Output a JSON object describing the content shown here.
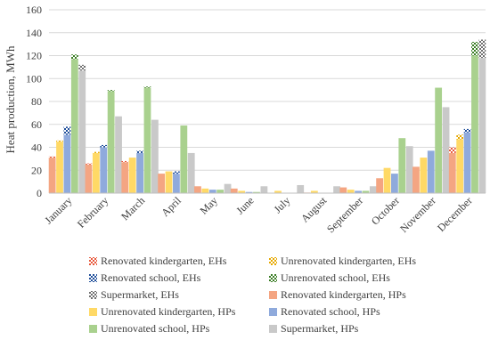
{
  "chart_data": {
    "type": "bar",
    "stacked": true,
    "ylabel": "Heat production, MWh",
    "xlabel": "",
    "ylim": [
      0,
      160
    ],
    "yticks": [
      0,
      20,
      40,
      60,
      80,
      100,
      120,
      140,
      160
    ],
    "grid": true,
    "legend_position": "bottom",
    "categories": [
      "January",
      "February",
      "March",
      "April",
      "May",
      "June",
      "July",
      "August",
      "September",
      "October",
      "November",
      "December"
    ],
    "buildings": [
      {
        "hp_name": "Renovated kindergarten, HPs",
        "eh_name": "Renovated kindergarten, EHs",
        "color": "#f4a582",
        "eh_color": "#e8573a",
        "hp": [
          31,
          25,
          27,
          17,
          6,
          4,
          0,
          0.5,
          5,
          13,
          23,
          35
        ],
        "eh": [
          1,
          1,
          1,
          0,
          0,
          0,
          0,
          0,
          0,
          0,
          0,
          5
        ]
      },
      {
        "hp_name": "Unrenovated kindergarten, HPs",
        "eh_name": "Unrenovated kindergarten, EHs",
        "color": "#ffd966",
        "eh_color": "#e6a800",
        "hp": [
          45,
          35,
          31,
          19,
          4,
          2,
          2,
          2,
          3,
          22,
          31,
          47
        ],
        "eh": [
          1,
          1,
          0,
          0,
          0,
          0,
          0,
          0,
          0,
          0,
          0,
          4
        ]
      },
      {
        "hp_name": "Renovated school, HPs",
        "eh_name": "Renovated school, EHs",
        "color": "#8faadc",
        "eh_color": "#1f4e9a",
        "hp": [
          51,
          40,
          35,
          17,
          3,
          1,
          0,
          0,
          2,
          17,
          37,
          53
        ],
        "eh": [
          7,
          2,
          2,
          2,
          0,
          0,
          0,
          0,
          0,
          0,
          0,
          3
        ]
      },
      {
        "hp_name": "Unrenovated school, HPs",
        "eh_name": "Unrenovated school, EHs",
        "color": "#a9d18e",
        "eh_color": "#3a7d24",
        "hp": [
          117,
          89,
          92,
          59,
          3,
          1,
          0,
          0,
          2,
          48,
          92,
          120
        ],
        "eh": [
          4,
          1,
          1,
          0,
          0,
          0,
          0,
          0,
          0,
          0,
          0,
          12
        ]
      },
      {
        "hp_name": "Supermarket, HPs",
        "eh_name": "Supermarket, EHs",
        "color": "#c9c9c9",
        "eh_color": "#6f6f6f",
        "hp": [
          107,
          67,
          64,
          35,
          8,
          6,
          7,
          6,
          6,
          41,
          75,
          118
        ],
        "eh": [
          5,
          0,
          0,
          0,
          0,
          0,
          0,
          0,
          0,
          0,
          0,
          16
        ]
      }
    ],
    "legend": [
      "Renovated kindergarten, EHs",
      "Unrenovated kindergarten, EHs",
      "Renovated school, EHs",
      "Unrenovated school, EHs",
      "Supermarket, EHs",
      "Renovated kindergarten, HPs",
      "Unrenovated kindergarten, HPs",
      "Renovated school, HPs",
      "Unrenovated school, HPs",
      "Supermarket, HPs"
    ]
  }
}
